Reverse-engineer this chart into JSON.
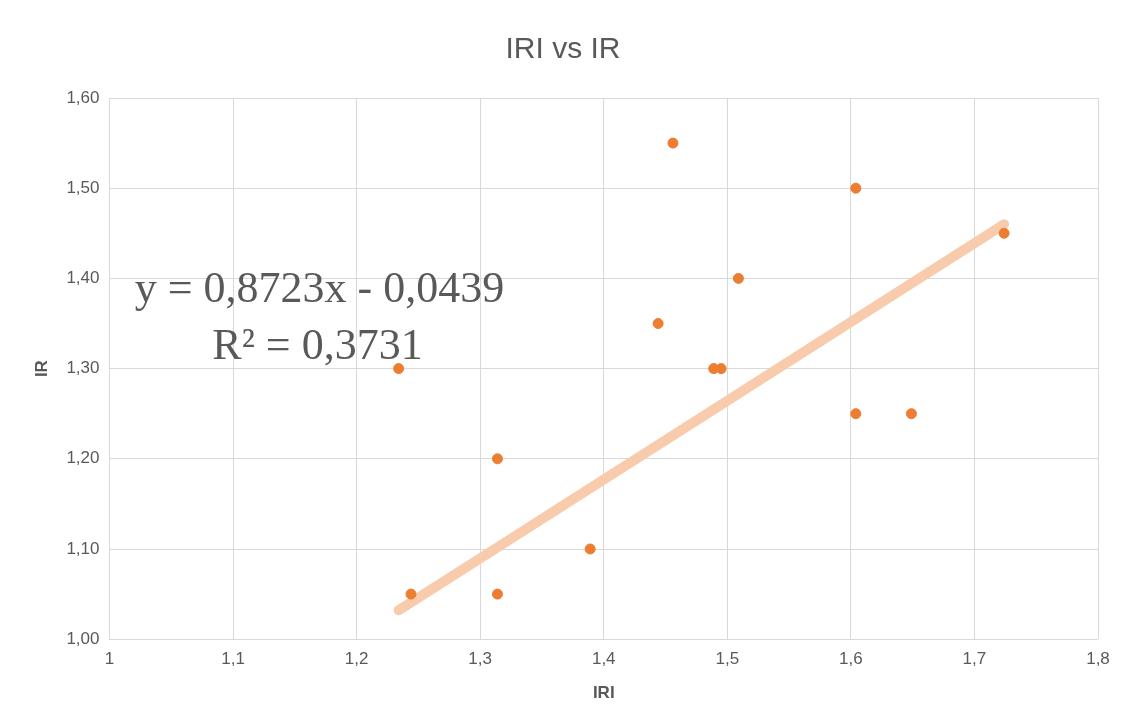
{
  "chart_data": {
    "type": "scatter",
    "title": "IRI vs IR",
    "xlabel": "IRI",
    "ylabel": "IR",
    "xlim": [
      1,
      1.8
    ],
    "ylim": [
      1,
      1.6
    ],
    "xticks": [
      1,
      {
        "value": 1.1,
        "label": "1,1"
      },
      {
        "value": 1.2,
        "label": "1,2"
      },
      {
        "value": 1.3,
        "label": "1,3"
      },
      {
        "value": 1.4,
        "label": "1,4"
      },
      {
        "value": 1.5,
        "label": "1,5"
      },
      {
        "value": 1.6,
        "label": "1,6"
      },
      {
        "value": 1.7,
        "label": "1,7"
      },
      {
        "value": 1.8,
        "label": "1,8"
      }
    ],
    "yticks": [
      {
        "value": 1,
        "label": "1,00"
      },
      {
        "value": 1.1,
        "label": "1,10"
      },
      {
        "value": 1.2,
        "label": "1,20"
      },
      {
        "value": 1.3,
        "label": "1,30"
      },
      {
        "value": 1.4,
        "label": "1,40"
      },
      {
        "value": 1.5,
        "label": "1,50"
      },
      {
        "value": 1.6,
        "label": "1,60"
      }
    ],
    "grid": true,
    "series": [
      {
        "marker": "circle",
        "color": "#ed7d31",
        "x": [
          1.234,
          1.244,
          1.314,
          1.314,
          1.389,
          1.444,
          1.456,
          1.489,
          1.495,
          1.509,
          1.604,
          1.604,
          1.649,
          1.724
        ],
        "values": [
          1.3,
          1.05,
          1.2,
          1.05,
          1.1,
          1.35,
          1.55,
          1.3,
          1.3,
          1.4,
          1.5,
          1.25,
          1.25,
          1.45
        ]
      },
      {
        "type": "line",
        "color": "#f8cbad",
        "x": [
          1.234,
          1.724
        ],
        "values": [
          1.032,
          1.46
        ]
      }
    ],
    "annotations": [
      "y = 0,8723x - 0,0439",
      "R² = 0,3731"
    ]
  }
}
